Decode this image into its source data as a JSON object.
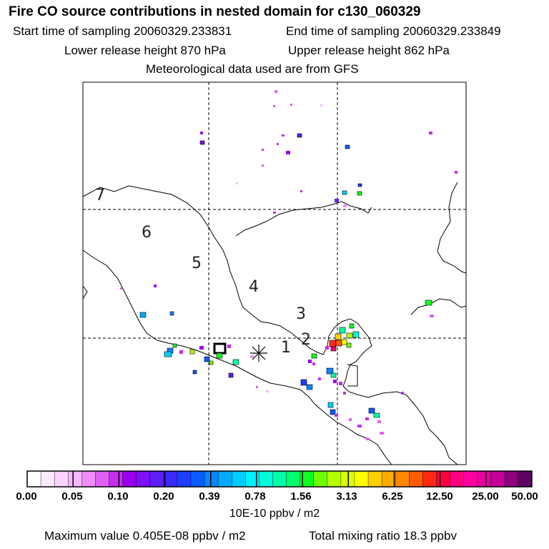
{
  "header": {
    "title": "Fire CO source contributions in nested domain for c130_060329",
    "start_label": "Start time of sampling 20060329.233831",
    "end_label": "End time of sampling 20060329.233849",
    "lower_label": "Lower release height  870 hPa",
    "upper_label": "Upper release height  862 hPa",
    "met_label": "Meteorological data used are from GFS"
  },
  "map": {
    "region_numbers": [
      "7",
      "6",
      "5",
      "4",
      "3",
      "2",
      "1"
    ]
  },
  "colorbar": {
    "tick_labels": [
      "0.00",
      "0.05",
      "0.10",
      "0.20",
      "0.39",
      "0.78",
      "1.56",
      "3.13",
      "6.25",
      "12.50",
      "25.00",
      "50.00"
    ],
    "units": "10E-10 ppbv / m2",
    "colors": [
      "#ffffff",
      "#fde9ff",
      "#fbd3fe",
      "#f7b7fc",
      "#ef8df9",
      "#e060f5",
      "#c72cf0",
      "#9a00f0",
      "#7d10f6",
      "#5e1ef8",
      "#3a2bfb",
      "#1c3dfd",
      "#0a5cff",
      "#0985ff",
      "#05aaff",
      "#00ccff",
      "#00f0ff",
      "#00ffd9",
      "#00ffa8",
      "#00ff6c",
      "#10ff20",
      "#70ff00",
      "#b4ff00",
      "#d9ff00",
      "#ffff00",
      "#ffd000",
      "#ffab00",
      "#ff8800",
      "#ff5b00",
      "#ff2a10",
      "#ff0040",
      "#ff0080",
      "#ff00a0",
      "#e600a0",
      "#c4009a",
      "#8d0080",
      "#600060"
    ]
  },
  "footer": {
    "max_label": "Maximum value  0.405E-08 ppbv / m2",
    "total_label": "Total mixing ratio       18.3 ppbv"
  }
}
